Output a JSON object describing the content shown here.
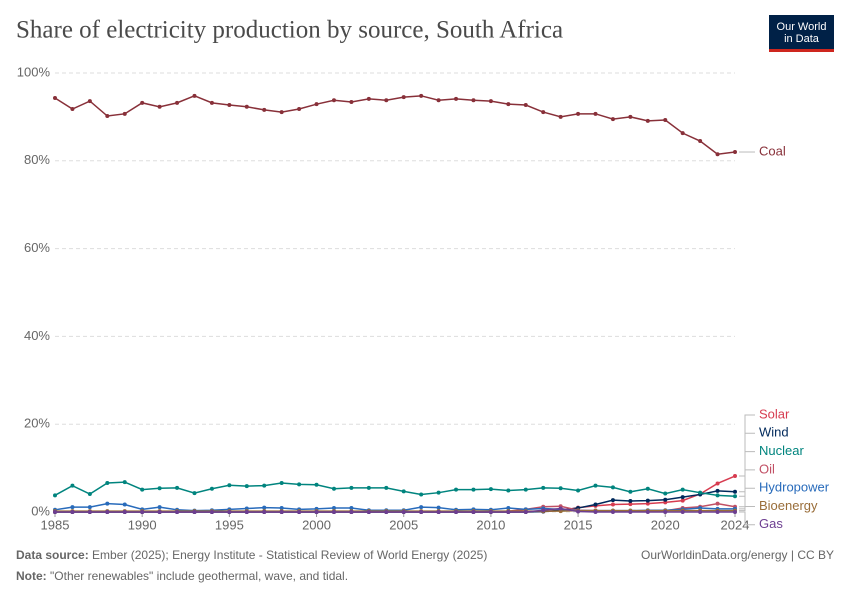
{
  "chart_data": {
    "type": "line",
    "title": "Share of electricity production by source, South Africa",
    "logo": [
      "Our World",
      "in Data"
    ],
    "source": "Ember (2025); Energy Institute - Statistical Review of World Energy (2025)",
    "source_label": "Data source:",
    "note_label": "Note:",
    "note": "\"Other renewables\" include geothermal, wave, and tidal.",
    "url": "OurWorldinData.org/energy | CC BY",
    "x": [
      1985,
      1986,
      1987,
      1988,
      1989,
      1990,
      1991,
      1992,
      1993,
      1994,
      1995,
      1996,
      1997,
      1998,
      1999,
      2000,
      2001,
      2002,
      2003,
      2004,
      2005,
      2006,
      2007,
      2008,
      2009,
      2010,
      2011,
      2012,
      2013,
      2014,
      2015,
      2016,
      2017,
      2018,
      2019,
      2020,
      2021,
      2022,
      2023,
      2024
    ],
    "xlim": [
      1985,
      2024
    ],
    "xticks": [
      1985,
      1990,
      1995,
      2000,
      2005,
      2010,
      2015,
      2020,
      2024
    ],
    "ylim": [
      0,
      100
    ],
    "yticks": [
      {
        "value": 0,
        "label": "0%"
      },
      {
        "value": 20,
        "label": "20%"
      },
      {
        "value": 40,
        "label": "40%"
      },
      {
        "value": 60,
        "label": "60%"
      },
      {
        "value": 80,
        "label": "80%"
      },
      {
        "value": 100,
        "label": "100%"
      }
    ],
    "grid": true,
    "series": [
      {
        "name": "Coal",
        "color": "#883039",
        "values": [
          94.3,
          91.8,
          93.6,
          90.2,
          90.7,
          93.2,
          92.3,
          93.2,
          94.8,
          93.2,
          92.7,
          92.3,
          91.6,
          91.1,
          91.8,
          92.9,
          93.8,
          93.4,
          94.1,
          93.8,
          94.5,
          94.8,
          93.8,
          94.1,
          93.8,
          93.6,
          92.9,
          92.7,
          91.1,
          90.0,
          90.7,
          90.7,
          89.5,
          90.0,
          89.1,
          89.3,
          86.3,
          84.5,
          81.5,
          82.0
        ]
      },
      {
        "name": "Solar",
        "color": "#d73c50",
        "values": [
          0,
          0,
          0,
          0,
          0,
          0,
          0,
          0,
          0,
          0,
          0,
          0,
          0,
          0,
          0,
          0,
          0,
          0,
          0,
          0,
          0,
          0,
          0,
          0,
          0,
          0,
          0,
          0,
          0.1,
          0.3,
          1.0,
          1.4,
          1.7,
          1.8,
          1.9,
          2.2,
          2.6,
          4.1,
          6.5,
          8.2
        ]
      },
      {
        "name": "Wind",
        "color": "#00295b",
        "values": [
          0,
          0,
          0,
          0,
          0,
          0,
          0,
          0,
          0,
          0,
          0,
          0,
          0,
          0,
          0,
          0,
          0,
          0,
          0,
          0,
          0,
          0,
          0,
          0,
          0,
          0,
          0,
          0,
          0.1,
          0.4,
          0.9,
          1.7,
          2.7,
          2.5,
          2.6,
          2.8,
          3.4,
          4.0,
          4.8,
          4.6
        ]
      },
      {
        "name": "Nuclear",
        "color": "#00847e",
        "values": [
          3.8,
          6.0,
          4.1,
          6.6,
          6.8,
          5.1,
          5.4,
          5.5,
          4.3,
          5.3,
          6.1,
          5.9,
          6.0,
          6.6,
          6.3,
          6.2,
          5.3,
          5.5,
          5.5,
          5.5,
          4.7,
          4.0,
          4.4,
          5.1,
          5.1,
          5.2,
          4.9,
          5.1,
          5.5,
          5.4,
          4.9,
          6.0,
          5.6,
          4.6,
          5.3,
          4.2,
          5.1,
          4.4,
          3.8,
          3.6
        ]
      },
      {
        "name": "Oil",
        "color": "#c15065",
        "values": [
          0.1,
          0.1,
          0.1,
          0.1,
          0.1,
          0.1,
          0.1,
          0.1,
          0.1,
          0.1,
          0.1,
          0.1,
          0.1,
          0.1,
          0.1,
          0.1,
          0.1,
          0.1,
          0.1,
          0.1,
          0.1,
          0.1,
          0.1,
          0.1,
          0.1,
          0.1,
          0.2,
          0.6,
          1.2,
          1.3,
          0.4,
          0.3,
          0.2,
          0.2,
          0.3,
          0.3,
          0.9,
          1.2,
          1.9,
          1.2
        ]
      },
      {
        "name": "Hydropower",
        "color": "#286bbb",
        "values": [
          0.5,
          1.1,
          1.1,
          1.9,
          1.7,
          0.6,
          1.1,
          0.5,
          0.3,
          0.4,
          0.6,
          0.8,
          1.0,
          0.9,
          0.6,
          0.7,
          0.9,
          0.9,
          0.4,
          0.4,
          0.4,
          1.1,
          1.0,
          0.5,
          0.6,
          0.5,
          0.9,
          0.6,
          0.8,
          0.6,
          0.3,
          0.3,
          0.3,
          0.3,
          0.4,
          0.4,
          0.6,
          0.9,
          0.7,
          0.7
        ]
      },
      {
        "name": "Bioenergy",
        "color": "#996d39",
        "values": [
          0.2,
          0.2,
          0.2,
          0.2,
          0.2,
          0.2,
          0.2,
          0.2,
          0.2,
          0.2,
          0.2,
          0.2,
          0.2,
          0.2,
          0.2,
          0.2,
          0.2,
          0.2,
          0.2,
          0.2,
          0.2,
          0.2,
          0.2,
          0.2,
          0.2,
          0.2,
          0.2,
          0.2,
          0.2,
          0.2,
          0.3,
          0.3,
          0.3,
          0.3,
          0.3,
          0.3,
          0.3,
          0.3,
          0.3,
          0.3
        ]
      },
      {
        "name": "Gas",
        "color": "#6d3e91",
        "values": [
          0,
          0,
          0,
          0,
          0,
          0,
          0,
          0,
          0,
          0,
          0,
          0,
          0,
          0,
          0,
          0,
          0,
          0,
          0,
          0,
          0,
          0,
          0,
          0,
          0,
          0,
          0,
          0,
          0.4,
          0.8,
          0.1,
          0,
          0,
          0,
          0,
          0,
          0,
          0,
          0,
          0
        ]
      }
    ]
  }
}
